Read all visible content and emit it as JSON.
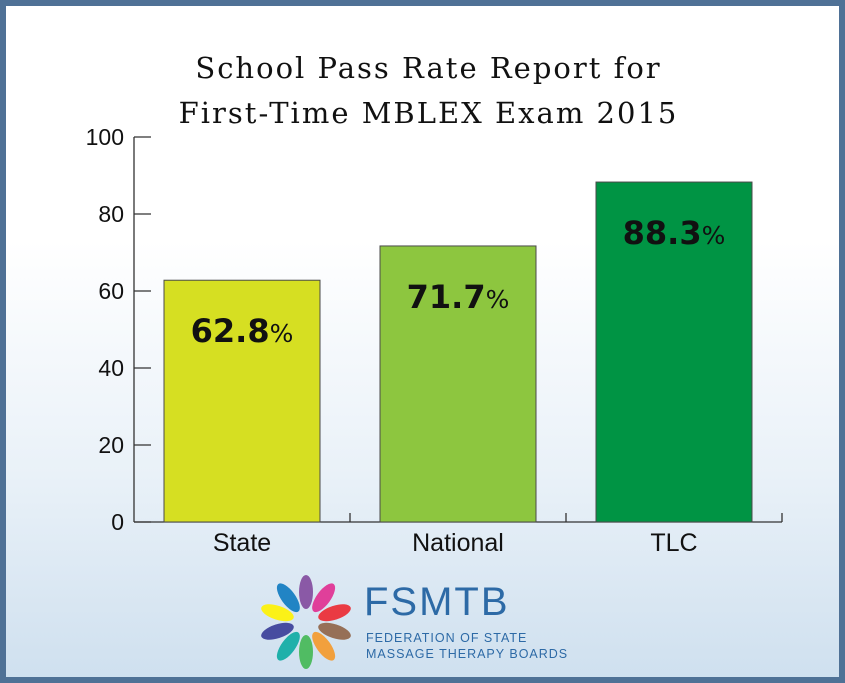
{
  "chart_data": {
    "type": "bar",
    "title": [
      "School Pass Rate Report for",
      "First-Time MBLEX Exam 2015"
    ],
    "categories": [
      "State",
      "National",
      "TLC"
    ],
    "values": [
      62.8,
      71.7,
      88.3
    ],
    "value_labels": [
      "62.8",
      "71.7",
      "88.3"
    ],
    "value_suffix": "%",
    "bar_colors": [
      "#d6df22",
      "#8dc63f",
      "#009444"
    ],
    "ylim": [
      0,
      100
    ],
    "yticks": [
      "0",
      "20",
      "40",
      "60",
      "80",
      "100"
    ],
    "xlabel": "",
    "ylabel": "",
    "grid": false,
    "legend": "none"
  },
  "logo": {
    "name": "FSMTB",
    "subtitle": [
      "FEDERATION OF STATE",
      "MASSAGE THERAPY BOARDS"
    ],
    "color": "#2d6aa6"
  }
}
